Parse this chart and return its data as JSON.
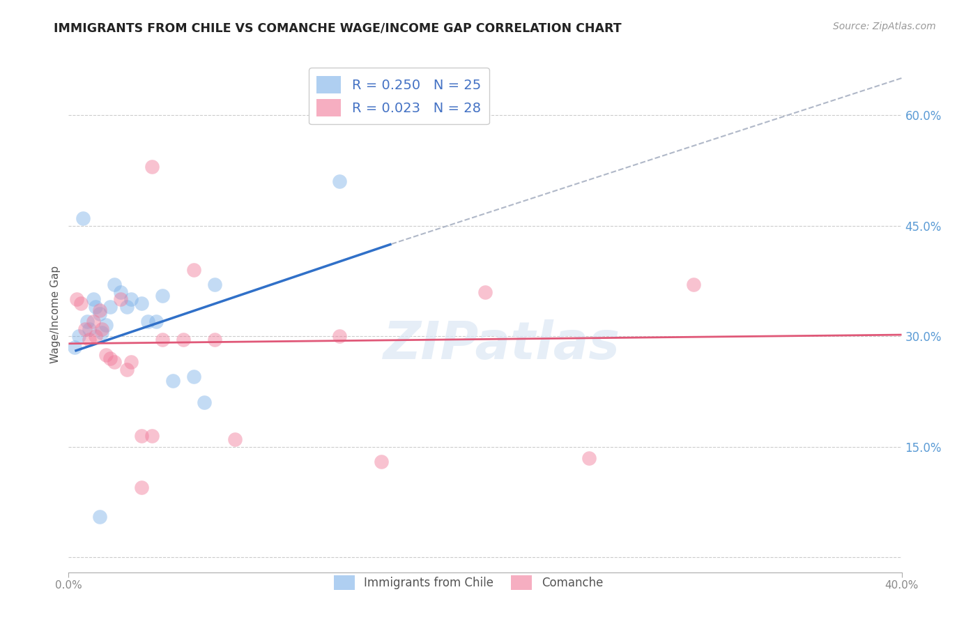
{
  "title": "IMMIGRANTS FROM CHILE VS COMANCHE WAGE/INCOME GAP CORRELATION CHART",
  "source": "Source: ZipAtlas.com",
  "ylabel": "Wage/Income Gap",
  "xlim": [
    0.0,
    0.4
  ],
  "ylim": [
    -0.02,
    0.68
  ],
  "y_ticks": [
    0.0,
    0.15,
    0.3,
    0.45,
    0.6
  ],
  "chile_color": "#7ab0e8",
  "comanche_color": "#f07898",
  "background_color": "#ffffff",
  "grid_color": "#cccccc",
  "right_axis_color": "#5b9bd5",
  "watermark": "ZIPatlas",
  "chile_scatter_x": [
    0.003,
    0.005,
    0.007,
    0.009,
    0.01,
    0.012,
    0.013,
    0.015,
    0.016,
    0.018,
    0.02,
    0.022,
    0.025,
    0.028,
    0.03,
    0.035,
    0.038,
    0.042,
    0.045,
    0.05,
    0.06,
    0.065,
    0.07,
    0.13,
    0.015
  ],
  "chile_scatter_y": [
    0.285,
    0.3,
    0.46,
    0.32,
    0.31,
    0.35,
    0.34,
    0.33,
    0.305,
    0.315,
    0.34,
    0.37,
    0.36,
    0.34,
    0.35,
    0.345,
    0.32,
    0.32,
    0.355,
    0.24,
    0.245,
    0.21,
    0.37,
    0.51,
    0.055
  ],
  "comanche_scatter_x": [
    0.004,
    0.006,
    0.008,
    0.01,
    0.012,
    0.013,
    0.015,
    0.016,
    0.018,
    0.02,
    0.022,
    0.025,
    0.028,
    0.03,
    0.035,
    0.04,
    0.045,
    0.055,
    0.06,
    0.07,
    0.08,
    0.13,
    0.15,
    0.2,
    0.25,
    0.3,
    0.035,
    0.04
  ],
  "comanche_scatter_y": [
    0.35,
    0.345,
    0.31,
    0.295,
    0.32,
    0.3,
    0.335,
    0.31,
    0.275,
    0.27,
    0.265,
    0.35,
    0.255,
    0.265,
    0.165,
    0.165,
    0.295,
    0.295,
    0.39,
    0.295,
    0.16,
    0.3,
    0.13,
    0.36,
    0.135,
    0.37,
    0.095,
    0.53
  ],
  "chile_line_x": [
    0.003,
    0.155
  ],
  "chile_line_y": [
    0.28,
    0.425
  ],
  "comanche_line_x": [
    0.0,
    0.4
  ],
  "comanche_line_y": [
    0.29,
    0.302
  ],
  "dashed_line_x": [
    0.155,
    0.4
  ],
  "dashed_line_y": [
    0.425,
    0.65
  ],
  "legend_R1": "R = 0.250",
  "legend_N1": "N = 25",
  "legend_R2": "R = 0.023",
  "legend_N2": "N = 28",
  "bottom_legend_chile": "Immigrants from Chile",
  "bottom_legend_comanche": "Comanche"
}
